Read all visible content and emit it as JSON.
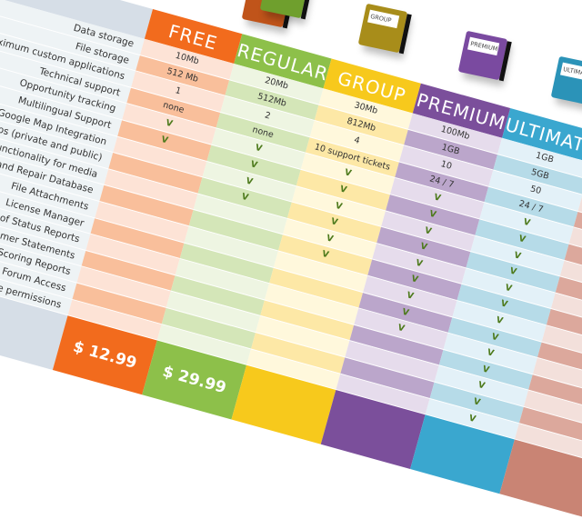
{
  "features": [
    "Data storage",
    "File storage",
    "Maximum custom applications",
    "Technical support",
    "Opportunity tracking",
    "Multilingual Support",
    "Google Map Integration",
    "Groups (private and public)",
    "Tag-functionality for media",
    "Impact and Repair Database",
    "File Attachments",
    "License Manager",
    "Emailing of Status Reports",
    "Customer Statements",
    "Lead Scoring Reports",
    "Forum Access",
    "Role permissions"
  ],
  "plans": [
    {
      "name": "FREE",
      "color": "#f26b1d",
      "light": "#fde3d6",
      "dark": "#f9bf9b",
      "price": "$ 12.99",
      "box_label": "",
      "values": [
        "10Mb",
        "512 Mb",
        "1",
        "none",
        "V",
        "V",
        "",
        "",
        "",
        "",
        "",
        "",
        "",
        "",
        "",
        "",
        ""
      ]
    },
    {
      "name": "REGULAR",
      "color": "#8dc04a",
      "light": "#eef5e2",
      "dark": "#d4e6b8",
      "price": "$ 29.99",
      "box_label": "",
      "values": [
        "20Mb",
        "512Mb",
        "2",
        "none",
        "V",
        "V",
        "V",
        "V",
        "",
        "",
        "",
        "",
        "",
        "",
        "",
        "",
        ""
      ]
    },
    {
      "name": "GROUP",
      "color": "#f7c91c",
      "light": "#fff8dc",
      "dark": "#fde8a6",
      "price": "",
      "box_label": "GROUP",
      "values": [
        "30Mb",
        "812Mb",
        "4",
        "10 support tickets",
        "V",
        "V",
        "V",
        "V",
        "V",
        "V",
        "",
        "",
        "",
        "",
        "",
        "",
        ""
      ]
    },
    {
      "name": "PREMIUM",
      "color": "#7b4f9b",
      "light": "#e6dcec",
      "dark": "#bba6cb",
      "price": "",
      "box_label": "PREMIUM",
      "values": [
        "100Mb",
        "1GB",
        "10",
        "24 / 7",
        "V",
        "V",
        "V",
        "V",
        "V",
        "V",
        "V",
        "V",
        "V",
        "",
        "",
        "",
        ""
      ]
    },
    {
      "name": "ULTIMATE",
      "color": "#3aa7cf",
      "light": "#e3f1f8",
      "dark": "#b6dbe8",
      "price": "",
      "box_label": "ULTIMATE",
      "values": [
        "1GB",
        "5GB",
        "50",
        "24 / 7",
        "V",
        "V",
        "V",
        "V",
        "V",
        "V",
        "V",
        "V",
        "V",
        "V",
        "V",
        "V",
        "V"
      ]
    },
    {
      "name": "",
      "color": "#c98474",
      "light": "#f3e0db",
      "dark": "#dca89c",
      "price": "",
      "box_label": "",
      "values": [
        "",
        "",
        "",
        "",
        "",
        "",
        "",
        "",
        "",
        "",
        "",
        "",
        "",
        "",
        "",
        "",
        ""
      ]
    }
  ]
}
